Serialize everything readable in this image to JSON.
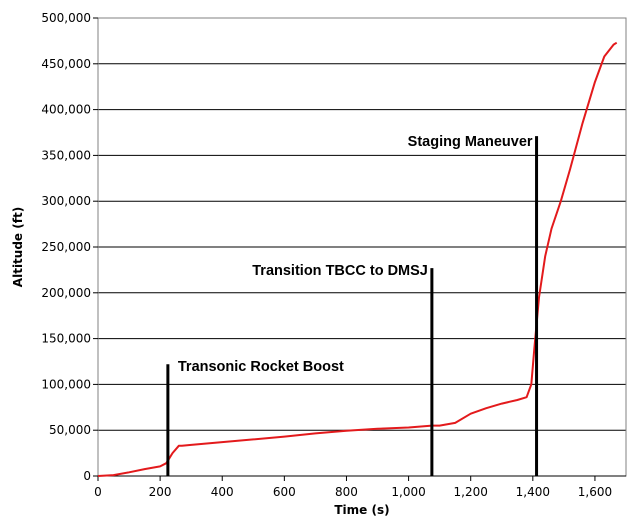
{
  "chart_data": {
    "type": "line",
    "title": "",
    "xlabel": "Time (s)",
    "ylabel": "Altitude (ft)",
    "xlim": [
      0,
      1700
    ],
    "ylim": [
      0,
      500000
    ],
    "x_ticks": [
      0,
      200,
      400,
      600,
      800,
      1000,
      1200,
      1400,
      1600
    ],
    "x_tick_labels": [
      "0",
      "200",
      "400",
      "600",
      "800",
      "1,000",
      "1,200",
      "1,400",
      "1,600"
    ],
    "y_ticks": [
      0,
      50000,
      100000,
      150000,
      200000,
      250000,
      300000,
      350000,
      400000,
      450000,
      500000
    ],
    "y_tick_labels": [
      "0",
      "50,000",
      "100,000",
      "150,000",
      "200,000",
      "250,000",
      "300,000",
      "350,000",
      "400,000",
      "450,000",
      "500,000"
    ],
    "grid": {
      "horizontal": true,
      "vertical": false
    },
    "legend": "none",
    "series": [
      {
        "color": "#e31a1c",
        "x": [
          0,
          50,
          100,
          150,
          200,
          220,
          240,
          260,
          270,
          300,
          400,
          500,
          600,
          700,
          800,
          900,
          1000,
          1075,
          1100,
          1150,
          1200,
          1250,
          1300,
          1350,
          1380,
          1395,
          1405,
          1420,
          1440,
          1460,
          1490,
          1520,
          1560,
          1600,
          1630,
          1660,
          1670
        ],
        "y": [
          0,
          1000,
          4000,
          7500,
          10500,
          14000,
          25000,
          33000,
          33000,
          34000,
          37000,
          40000,
          43000,
          46500,
          49500,
          51500,
          53000,
          55000,
          55000,
          58000,
          68000,
          74000,
          79000,
          83000,
          86000,
          100000,
          140000,
          195000,
          240000,
          270000,
          300000,
          335000,
          385000,
          430000,
          458000,
          471000,
          473000
        ]
      }
    ],
    "annotations": [
      {
        "text": "Transonic Rocket Boost",
        "x": 225,
        "y_from": 0,
        "y_to": 122000
      },
      {
        "text": "Transition TBCC to DMSJ",
        "x": 1075,
        "y_from": 0,
        "y_to": 227000
      },
      {
        "text": "Staging Maneuver",
        "x": 1412,
        "y_from": 0,
        "y_to": 371000
      }
    ],
    "colors": {
      "line": "#e31a1c",
      "marker_lines": "#000000",
      "grid": "#000000",
      "plot_border": "#808080"
    }
  }
}
